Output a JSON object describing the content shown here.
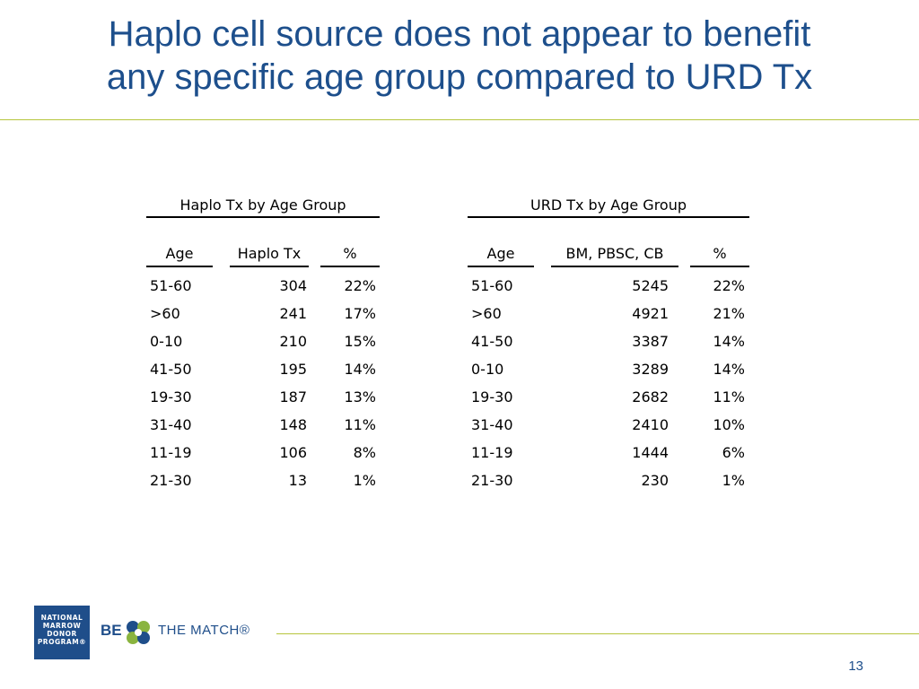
{
  "slide": {
    "title_line1": "Haplo cell source does not appear to benefit",
    "title_line2": "any specific age group compared to URD Tx",
    "page_number": "13"
  },
  "haplo_table": {
    "group_header": "Haplo Tx by Age Group",
    "columns": [
      "Age",
      "Haplo Tx",
      "%"
    ],
    "rows": [
      [
        "51-60",
        "304",
        "22%"
      ],
      [
        ">60",
        "241",
        "17%"
      ],
      [
        "0-10",
        "210",
        "15%"
      ],
      [
        "41-50",
        "195",
        "14%"
      ],
      [
        "19-30",
        "187",
        "13%"
      ],
      [
        "31-40",
        "148",
        "11%"
      ],
      [
        "11-19",
        "106",
        "8%"
      ],
      [
        "21-30",
        "13",
        "1%"
      ]
    ]
  },
  "urd_table": {
    "group_header": "URD Tx by Age Group",
    "columns": [
      "Age",
      "BM, PBSC, CB",
      "%"
    ],
    "rows": [
      [
        "51-60",
        "5245",
        "22%"
      ],
      [
        ">60",
        "4921",
        "21%"
      ],
      [
        "41-50",
        "3387",
        "14%"
      ],
      [
        "0-10",
        "3289",
        "14%"
      ],
      [
        "19-30",
        "2682",
        "11%"
      ],
      [
        "31-40",
        "2410",
        "10%"
      ],
      [
        "11-19",
        "1444",
        "6%"
      ],
      [
        "21-30",
        "230",
        "1%"
      ]
    ]
  },
  "footer": {
    "logo_line1": "NATIONAL",
    "logo_line2": "MARROW",
    "logo_line3": "DONOR",
    "logo_line4": "PROGRAM®",
    "brand_be": "BE",
    "brand_match": "THE MATCH®"
  },
  "colors": {
    "title": "#1d4f8c",
    "rule": "#b6c53c",
    "logo_bg": "#1f4e8a",
    "flower_blue": "#1f4e8a",
    "flower_green": "#8ab43f"
  }
}
